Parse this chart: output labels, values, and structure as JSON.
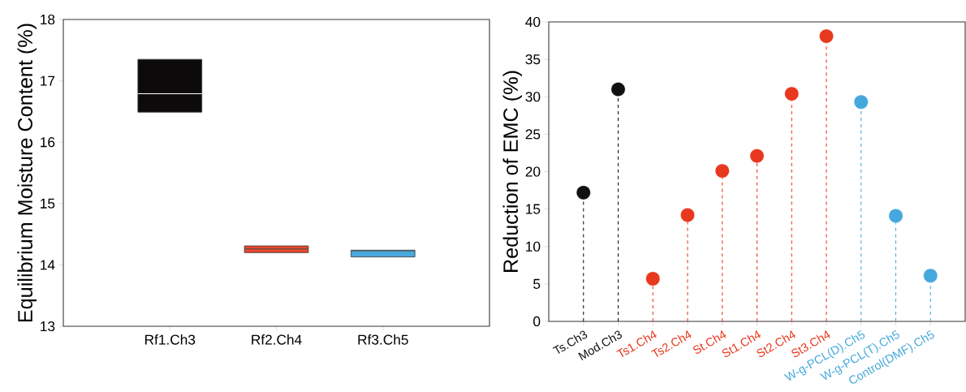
{
  "chart_data": [
    {
      "type": "box",
      "ylabel": "Equilibrium Moisture Content (%)",
      "categories": [
        "Rf1.Ch3",
        "Rf2.Ch4",
        "Rf3.Ch5"
      ],
      "boxes": [
        {
          "low": 16.49,
          "q1": 16.49,
          "median": 16.79,
          "q3": 17.35,
          "high": 17.35
        },
        {
          "low": 14.2,
          "q1": 14.2,
          "median": 14.26,
          "q3": 14.31,
          "high": 14.31
        },
        {
          "low": 14.13,
          "q1": 14.13,
          "median": 14.23,
          "q3": 14.24,
          "high": 14.24
        }
      ],
      "colors": [
        "#0d0a0b",
        "#e8472a",
        "#4aa8dc"
      ],
      "ylim": [
        13,
        18
      ],
      "yticks": [
        13,
        14,
        15,
        16,
        17,
        18
      ]
    },
    {
      "type": "lollipop",
      "ylabel": "Reduction of EMC (%)",
      "categories": [
        "Ts.Ch3",
        "Mod.Ch3",
        "Ts1.Ch4",
        "Ts2.Ch4",
        "St.Ch4",
        "St1.Ch4",
        "St2.Ch4",
        "St3.Ch4",
        "W-g-PCL(D).Ch5",
        "W-g-PCL(T).Ch5",
        "Control(DMF).Ch5"
      ],
      "values": [
        17.2,
        31,
        5.7,
        14.2,
        20.1,
        22.1,
        30.4,
        38.1,
        29.3,
        14.1,
        6.1
      ],
      "colors": [
        "#111111",
        "#111111",
        "#e8381e",
        "#e8381e",
        "#e8381e",
        "#e8381e",
        "#e8381e",
        "#e8381e",
        "#44a8dc",
        "#44a8dc",
        "#44a8dc"
      ],
      "ylim": [
        0,
        40
      ],
      "yticks": [
        0,
        5,
        10,
        15,
        20,
        25,
        30,
        35,
        40
      ],
      "marker": "circle",
      "line_style": "dashed"
    }
  ]
}
